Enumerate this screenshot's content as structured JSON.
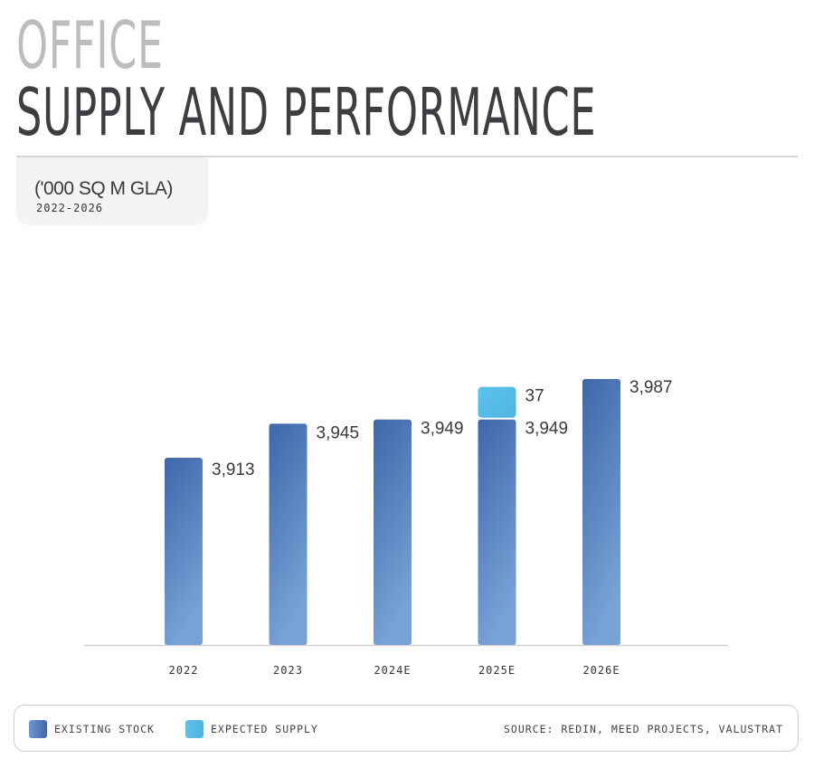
{
  "header": {
    "title_line1": "OFFICE",
    "title_line2": "SUPPLY AND PERFORMANCE",
    "unit": "('000 SQ M GLA)",
    "period": "2022-2026"
  },
  "colors": {
    "existing_stock": "#4169ad",
    "existing_stock_light": "#78a2d6",
    "expected_supply": "#5ac0ea",
    "title_grey": "#bdbdbd",
    "title_dark": "#3d3e42"
  },
  "chart_data": {
    "type": "bar",
    "stacked": true,
    "categories": [
      "2022",
      "2023",
      "2024E",
      "2025E",
      "2026E"
    ],
    "series": [
      {
        "name": "EXISTING STOCK",
        "values": [
          3913,
          3945,
          3949,
          3949,
          3987
        ],
        "labels": [
          "3,913",
          "3,945",
          "3,949",
          "3,949",
          "3,987"
        ]
      },
      {
        "name": "EXPECTED SUPPLY",
        "values": [
          null,
          null,
          null,
          37,
          null
        ],
        "labels": [
          "",
          "",
          "",
          "37",
          ""
        ]
      }
    ],
    "title": "",
    "xlabel": "",
    "ylabel": "",
    "grid": false,
    "y_axis_visible": false,
    "legend_position": "bottom"
  },
  "legend": {
    "items": [
      {
        "label": "EXISTING STOCK"
      },
      {
        "label": "EXPECTED SUPPLY"
      }
    ],
    "source": "SOURCE: REDIN, MEED PROJECTS, VALUSTRAT"
  }
}
